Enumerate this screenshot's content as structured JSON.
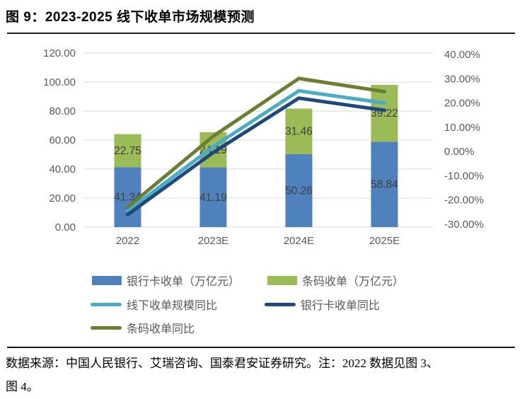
{
  "page": {
    "title": "图 9：2023-2025 线下收单市场规模预测"
  },
  "chart_data": {
    "type": "combo_stacked_bar_line",
    "categories": [
      "2022",
      "2023E",
      "2024E",
      "2025E"
    ],
    "bar_series": [
      {
        "name": "银行卡收单（万亿元）",
        "color": "#4F81BD",
        "axis": "left",
        "values": [
          41.34,
          41.19,
          50.26,
          58.84
        ]
      },
      {
        "name": "条码收单（万亿元）",
        "color": "#9BBB59",
        "axis": "left",
        "values": [
          22.75,
          24.19,
          31.46,
          39.22
        ]
      }
    ],
    "line_series": [
      {
        "name": "线下收单规模同比",
        "color": "#4BACC6",
        "axis": "right",
        "values_pct": [
          -24.5,
          2.0,
          25.0,
          20.0
        ]
      },
      {
        "name": "银行卡收单同比",
        "color": "#1F497D",
        "axis": "right",
        "values_pct": [
          -26.0,
          -0.4,
          22.0,
          17.0
        ]
      },
      {
        "name": "条码收单同比",
        "color": "#6B7F33",
        "axis": "right",
        "values_pct": [
          -23.0,
          6.3,
          30.1,
          24.7
        ]
      }
    ],
    "left_axis": {
      "min": 0,
      "max": 120,
      "ticks": [
        "120.00",
        "100.00",
        "80.00",
        "60.00",
        "40.00",
        "20.00",
        "0.00"
      ]
    },
    "right_axis": {
      "min": -30,
      "max": 40,
      "ticks": [
        "40.00%",
        "30.00%",
        "20.00%",
        "10.00%",
        "0.00%",
        "-10.00%",
        "-20.00%",
        "-30.00%"
      ]
    },
    "grid": true,
    "bar_stacked": true,
    "data_labels_visible": true,
    "legend_position": "bottom"
  },
  "legend": {
    "items": [
      {
        "label": "银行卡收单（万亿元）",
        "color": "#4F81BD",
        "swatch": "rect"
      },
      {
        "label": "条码收单（万亿元）",
        "color": "#9BBB59",
        "swatch": "rect"
      },
      {
        "label": "线下收单规模同比",
        "color": "#4BACC6",
        "swatch": "line"
      },
      {
        "label": "银行卡收单同比",
        "color": "#1F497D",
        "swatch": "line"
      },
      {
        "label": "条码收单同比",
        "color": "#6B7F33",
        "swatch": "line"
      }
    ]
  },
  "footer": {
    "line1": "数据来源：中国人民银行、艾瑞咨询、国泰君安证券研究。注：2022 数据见图 3、",
    "line2": "图 4。"
  },
  "colors": {
    "grid": "#D9D9D9",
    "axis_text": "#595959",
    "data_label": "#3F3F3F",
    "rule": "#1A1A1A"
  }
}
